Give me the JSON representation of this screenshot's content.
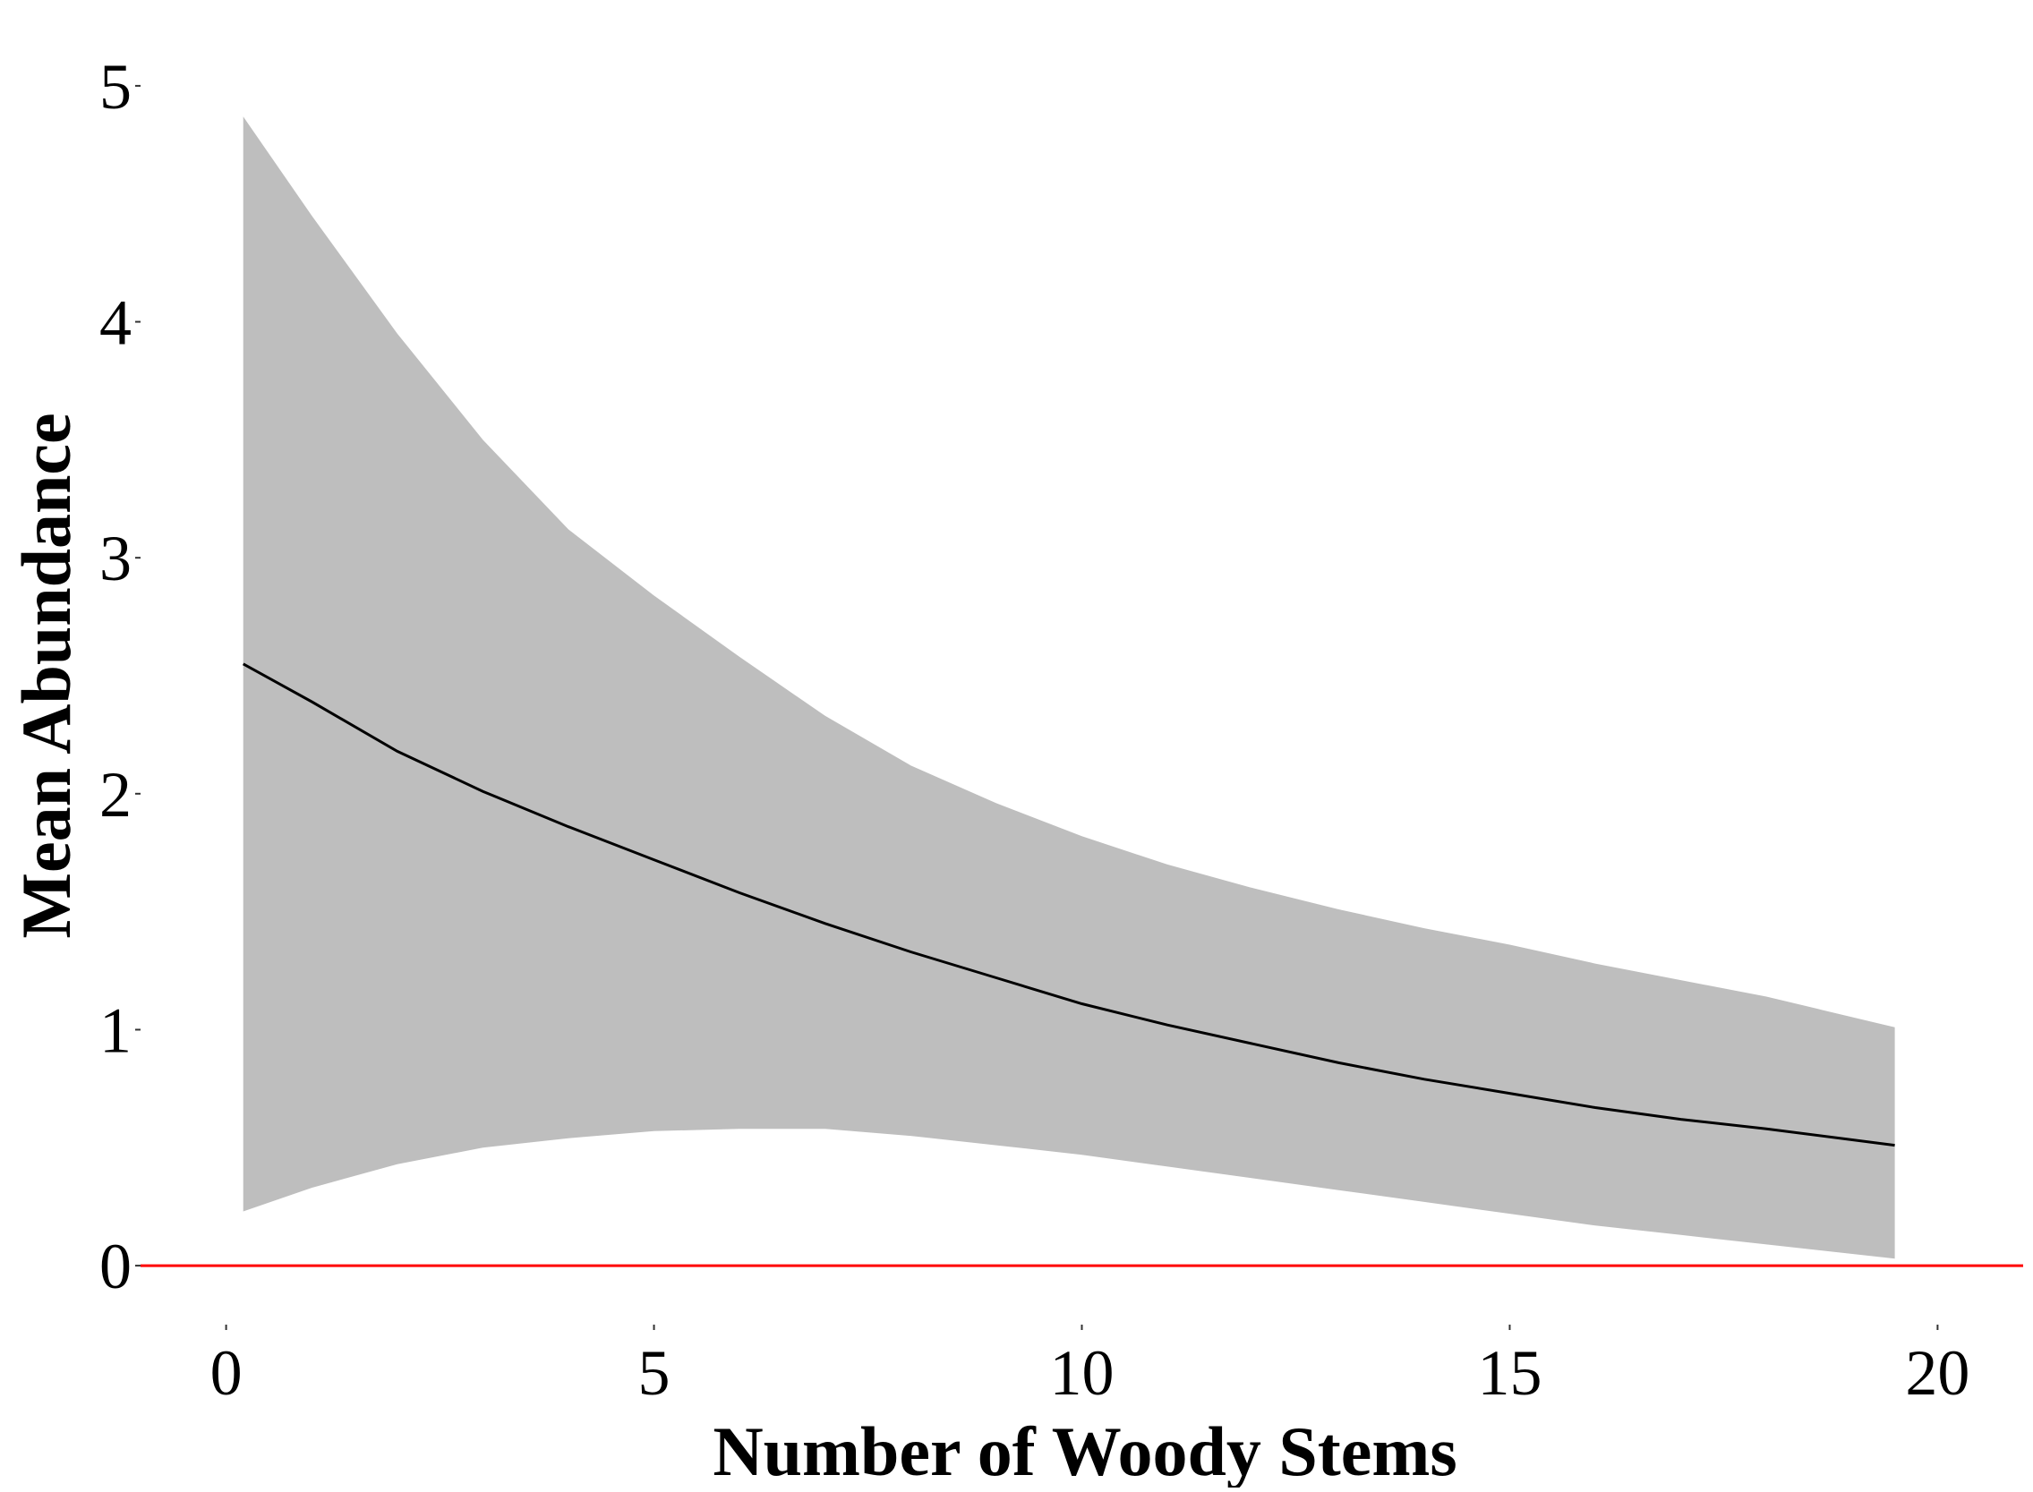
{
  "chart_data": {
    "type": "line",
    "title": "",
    "xlabel": "Number of Woody Stems",
    "ylabel": "Mean Abundance",
    "xlim": [
      -1,
      21
    ],
    "ylim": [
      -0.25,
      5.25
    ],
    "x_ticks": [
      0,
      5,
      10,
      15,
      20
    ],
    "y_ticks": [
      0,
      1,
      2,
      3,
      4,
      5
    ],
    "grid": false,
    "legend": "none",
    "reference_line": {
      "y": 0,
      "color": "#ff0000"
    },
    "series": [
      {
        "kind": "confidence-band",
        "color": "#bebebe",
        "x": [
          0.2,
          1,
          2,
          3,
          4,
          5,
          6,
          7,
          8,
          9,
          10,
          11,
          12,
          13,
          14,
          15,
          16,
          17,
          18,
          19.5
        ],
        "upper": [
          4.87,
          4.45,
          3.95,
          3.5,
          3.12,
          2.84,
          2.58,
          2.33,
          2.12,
          1.96,
          1.82,
          1.7,
          1.6,
          1.51,
          1.43,
          1.36,
          1.28,
          1.21,
          1.14,
          1.01
        ],
        "lower": [
          0.23,
          0.33,
          0.43,
          0.5,
          0.54,
          0.57,
          0.58,
          0.58,
          0.55,
          0.51,
          0.47,
          0.42,
          0.37,
          0.32,
          0.27,
          0.22,
          0.17,
          0.13,
          0.09,
          0.03
        ]
      },
      {
        "kind": "mean-line",
        "color": "#000000",
        "x": [
          0.2,
          1,
          2,
          3,
          4,
          5,
          6,
          7,
          8,
          9,
          10,
          11,
          12,
          13,
          14,
          15,
          16,
          17,
          18,
          19.5
        ],
        "values": [
          2.55,
          2.39,
          2.18,
          2.01,
          1.86,
          1.72,
          1.58,
          1.45,
          1.33,
          1.22,
          1.11,
          1.02,
          0.94,
          0.86,
          0.79,
          0.73,
          0.67,
          0.62,
          0.58,
          0.51
        ]
      }
    ]
  }
}
